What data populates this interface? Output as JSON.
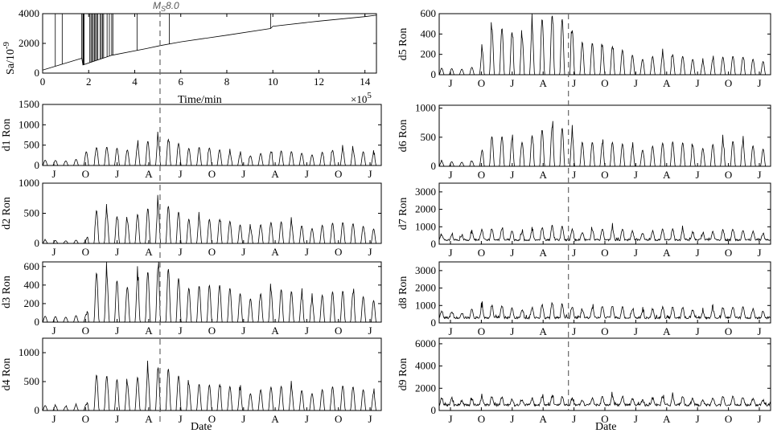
{
  "earthquake_label": "Ms8.0",
  "earthquake_label_main": "M",
  "earthquake_label_sub": "S",
  "earthquake_label_mag": "8.0",
  "top_xlabel": "Time/min",
  "top_x_exponent": "×10",
  "top_x_exponent_power": "5",
  "top_ylabel": "Sa/10",
  "top_ylabel_power": "-9",
  "date_xlabel": "Date",
  "month_labels": [
    "J",
    "O",
    "J",
    "A",
    "J",
    "O",
    "J",
    "A",
    "J",
    "O",
    "J"
  ],
  "chart_data": [
    {
      "id": "sa",
      "type": "line",
      "title": "",
      "xlabel": "Time/min",
      "ylabel": "Sa/10^-9",
      "x_multiplier": "×10^5",
      "xlim": [
        0,
        14.5
      ],
      "ylim": [
        0,
        4000
      ],
      "xticks": [
        0,
        2,
        4,
        6,
        8,
        10,
        12,
        14
      ],
      "yticks": [
        0,
        2000,
        4000
      ],
      "earthquake_x": 5.1,
      "trend": [
        [
          0,
          200
        ],
        [
          1.7,
          1000
        ],
        [
          1.75,
          550
        ],
        [
          3,
          1200
        ],
        [
          4.5,
          1650
        ],
        [
          5.1,
          1850
        ],
        [
          6,
          2100
        ],
        [
          8,
          2550
        ],
        [
          9.9,
          3000
        ],
        [
          10,
          3150
        ],
        [
          12,
          3500
        ],
        [
          14,
          3800
        ],
        [
          14.5,
          3900
        ]
      ],
      "spikes_to_ylim": [
        0.55,
        0.85,
        1.7,
        1.75,
        1.78,
        1.8,
        2.05,
        2.1,
        2.15,
        2.2,
        2.25,
        2.3,
        2.35,
        2.4,
        2.5,
        2.55,
        2.6,
        2.65,
        2.8,
        2.9,
        3.0,
        3.05,
        4.1,
        5.5,
        9.9,
        14.0
      ]
    },
    {
      "id": "d1",
      "type": "line",
      "ylabel": "d1 Ron",
      "xlabel": "",
      "ylim": [
        0,
        1500
      ],
      "yticks": [
        0,
        500,
        1000,
        1500
      ],
      "month_labels": [
        "J",
        "O",
        "J",
        "A",
        "J",
        "O",
        "J",
        "A",
        "J",
        "O",
        "J"
      ],
      "cycles": 33,
      "peak_envelope": [
        [
          0,
          120
        ],
        [
          0.1,
          160
        ],
        [
          0.14,
          380
        ],
        [
          0.3,
          550
        ],
        [
          0.36,
          620
        ],
        [
          0.42,
          580
        ],
        [
          0.48,
          430
        ],
        [
          0.55,
          300
        ],
        [
          0.75,
          330
        ],
        [
          1.0,
          380
        ]
      ],
      "earthquake_fraction": 0.39
    },
    {
      "id": "d2",
      "type": "line",
      "ylabel": "d2 Ron",
      "xlabel": "",
      "ylim": [
        0,
        1000
      ],
      "yticks": [
        0,
        500,
        1000
      ],
      "month_labels": [
        "J",
        "O",
        "J",
        "A",
        "J",
        "O",
        "J",
        "A",
        "J",
        "O",
        "J"
      ],
      "cycles": 33,
      "peak_envelope": [
        [
          0,
          50
        ],
        [
          0.13,
          60
        ],
        [
          0.14,
          500
        ],
        [
          0.25,
          480
        ],
        [
          0.36,
          600
        ],
        [
          0.42,
          560
        ],
        [
          0.48,
          380
        ],
        [
          0.6,
          330
        ],
        [
          0.8,
          320
        ],
        [
          1.0,
          310
        ]
      ],
      "earthquake_fraction": 0.39
    },
    {
      "id": "d3",
      "type": "line",
      "ylabel": "d3 Ron",
      "xlabel": "",
      "ylim": [
        0,
        650
      ],
      "yticks": [
        0,
        200,
        400,
        600
      ],
      "month_labels": [
        "J",
        "O",
        "J",
        "A",
        "J",
        "O",
        "J",
        "A",
        "J",
        "O",
        "J"
      ],
      "cycles": 33,
      "peak_envelope": [
        [
          0,
          60
        ],
        [
          0.13,
          80
        ],
        [
          0.14,
          480
        ],
        [
          0.3,
          500
        ],
        [
          0.36,
          560
        ],
        [
          0.42,
          500
        ],
        [
          0.48,
          380
        ],
        [
          0.6,
          330
        ],
        [
          0.8,
          310
        ],
        [
          1.0,
          300
        ]
      ],
      "earthquake_fraction": 0.39
    },
    {
      "id": "d4",
      "type": "line",
      "ylabel": "d4 Ron",
      "xlabel": "Date",
      "ylim": [
        0,
        1250
      ],
      "yticks": [
        0,
        500,
        1000
      ],
      "month_labels": [
        "J",
        "O",
        "J",
        "A",
        "J",
        "O",
        "J",
        "A",
        "J",
        "O",
        "J"
      ],
      "cycles": 33,
      "peak_envelope": [
        [
          0,
          80
        ],
        [
          0.13,
          100
        ],
        [
          0.14,
          550
        ],
        [
          0.3,
          620
        ],
        [
          0.36,
          700
        ],
        [
          0.42,
          640
        ],
        [
          0.48,
          420
        ],
        [
          0.6,
          380
        ],
        [
          0.8,
          380
        ],
        [
          1.0,
          400
        ]
      ],
      "earthquake_fraction": 0.39
    },
    {
      "id": "d5",
      "type": "line",
      "ylabel": "d5 Ron",
      "xlabel": "",
      "ylim": [
        0,
        600
      ],
      "yticks": [
        0,
        200,
        400,
        600
      ],
      "month_labels": [
        "J",
        "O",
        "J",
        "A",
        "J",
        "O",
        "J",
        "A",
        "J",
        "O",
        "J"
      ],
      "cycles": 33,
      "peak_envelope": [
        [
          0,
          60
        ],
        [
          0.12,
          80
        ],
        [
          0.14,
          400
        ],
        [
          0.28,
          500
        ],
        [
          0.36,
          540
        ],
        [
          0.42,
          450
        ],
        [
          0.48,
          280
        ],
        [
          0.6,
          200
        ],
        [
          0.8,
          160
        ],
        [
          1.0,
          170
        ]
      ],
      "earthquake_fraction": 0.39
    },
    {
      "id": "d6",
      "type": "line",
      "ylabel": "d6 Ron",
      "xlabel": "",
      "ylim": [
        0,
        1050
      ],
      "yticks": [
        0,
        500,
        1000
      ],
      "month_labels": [
        "J",
        "O",
        "J",
        "A",
        "J",
        "O",
        "J",
        "A",
        "J",
        "O",
        "J"
      ],
      "cycles": 33,
      "peak_envelope": [
        [
          0,
          80
        ],
        [
          0.12,
          100
        ],
        [
          0.14,
          450
        ],
        [
          0.28,
          560
        ],
        [
          0.36,
          640
        ],
        [
          0.42,
          580
        ],
        [
          0.48,
          380
        ],
        [
          0.6,
          360
        ],
        [
          0.8,
          400
        ],
        [
          1.0,
          380
        ]
      ],
      "earthquake_fraction": 0.39
    },
    {
      "id": "d7",
      "type": "line",
      "ylabel": "d7 Ron",
      "xlabel": "",
      "ylim": [
        0,
        3500
      ],
      "yticks": [
        0,
        1000,
        2000,
        3000
      ],
      "month_labels": [
        "J",
        "O",
        "J",
        "A",
        "J",
        "O",
        "J",
        "A",
        "J",
        "O",
        "J"
      ],
      "cycles": 33,
      "peak_envelope": [
        [
          0,
          500
        ],
        [
          0.14,
          800
        ],
        [
          0.3,
          850
        ],
        [
          0.36,
          1000
        ],
        [
          0.42,
          900
        ],
        [
          0.6,
          800
        ],
        [
          0.8,
          760
        ],
        [
          1.0,
          800
        ]
      ],
      "baseline": 250,
      "earthquake_fraction": 0.39
    },
    {
      "id": "d8",
      "type": "line",
      "ylabel": "d8 Ron",
      "xlabel": "",
      "ylim": [
        0,
        3500
      ],
      "yticks": [
        0,
        1000,
        2000,
        3000
      ],
      "month_labels": [
        "J",
        "O",
        "J",
        "A",
        "J",
        "O",
        "J",
        "A",
        "J",
        "O",
        "J"
      ],
      "cycles": 33,
      "peak_envelope": [
        [
          0,
          600
        ],
        [
          0.14,
          900
        ],
        [
          0.3,
          950
        ],
        [
          0.36,
          1050
        ],
        [
          0.42,
          950
        ],
        [
          0.6,
          850
        ],
        [
          0.8,
          800
        ],
        [
          1.0,
          900
        ]
      ],
      "baseline": 300,
      "earthquake_fraction": 0.39
    },
    {
      "id": "d9",
      "type": "line",
      "ylabel": "d9 Ron",
      "xlabel": "Date",
      "ylim": [
        0,
        6500
      ],
      "yticks": [
        0,
        2000,
        4000,
        6000
      ],
      "month_labels": [
        "J",
        "O",
        "J",
        "A",
        "J",
        "O",
        "J",
        "A",
        "J",
        "O",
        "J"
      ],
      "cycles": 33,
      "peak_envelope": [
        [
          0,
          1100
        ],
        [
          0.5,
          1200
        ],
        [
          1.0,
          1150
        ]
      ],
      "baseline": 500,
      "earthquake_fraction": 0.39
    }
  ]
}
